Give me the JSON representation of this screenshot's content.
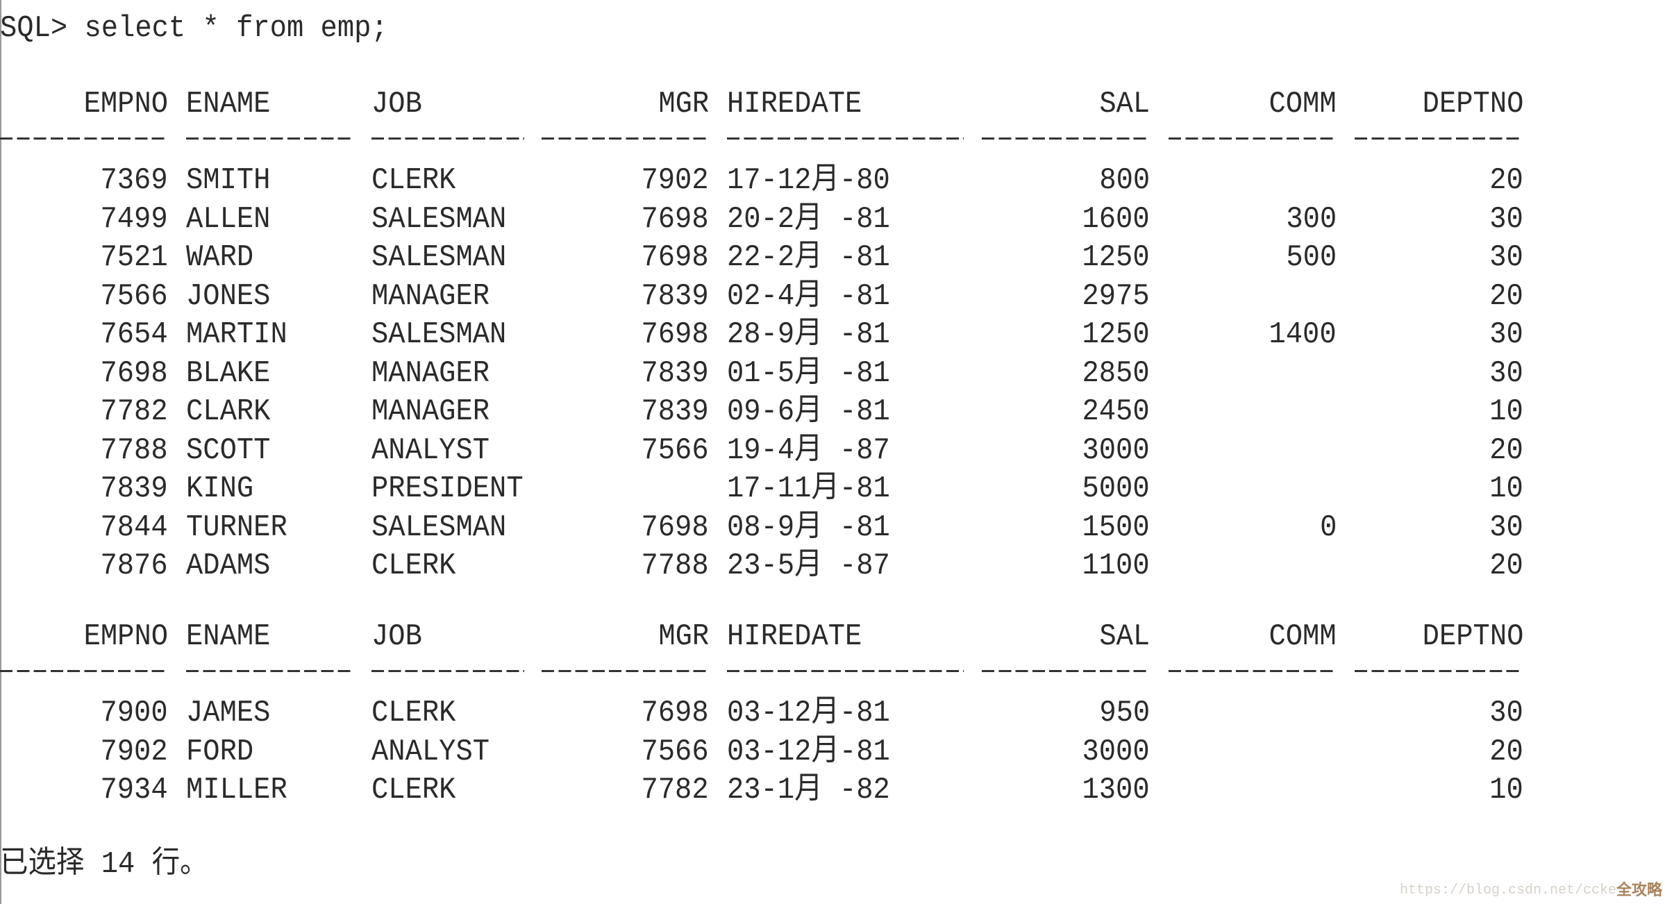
{
  "prompt": "SQL> select * from emp;",
  "columns": [
    "EMPNO",
    "ENAME",
    "JOB",
    "MGR",
    "HIREDATE",
    "SAL",
    "COMM",
    "DEPTNO"
  ],
  "pages": [
    [
      [
        "7369",
        "SMITH",
        "CLERK",
        "7902",
        "17-12月-80",
        "800",
        "",
        "20"
      ],
      [
        "7499",
        "ALLEN",
        "SALESMAN",
        "7698",
        "20-2月 -81",
        "1600",
        "300",
        "30"
      ],
      [
        "7521",
        "WARD",
        "SALESMAN",
        "7698",
        "22-2月 -81",
        "1250",
        "500",
        "30"
      ],
      [
        "7566",
        "JONES",
        "MANAGER",
        "7839",
        "02-4月 -81",
        "2975",
        "",
        "20"
      ],
      [
        "7654",
        "MARTIN",
        "SALESMAN",
        "7698",
        "28-9月 -81",
        "1250",
        "1400",
        "30"
      ],
      [
        "7698",
        "BLAKE",
        "MANAGER",
        "7839",
        "01-5月 -81",
        "2850",
        "",
        "30"
      ],
      [
        "7782",
        "CLARK",
        "MANAGER",
        "7839",
        "09-6月 -81",
        "2450",
        "",
        "10"
      ],
      [
        "7788",
        "SCOTT",
        "ANALYST",
        "7566",
        "19-4月 -87",
        "3000",
        "",
        "20"
      ],
      [
        "7839",
        "KING",
        "PRESIDENT",
        "",
        "17-11月-81",
        "5000",
        "",
        "10"
      ],
      [
        "7844",
        "TURNER",
        "SALESMAN",
        "7698",
        "08-9月 -81",
        "1500",
        "0",
        "30"
      ],
      [
        "7876",
        "ADAMS",
        "CLERK",
        "7788",
        "23-5月 -87",
        "1100",
        "",
        "20"
      ]
    ],
    [
      [
        "7900",
        "JAMES",
        "CLERK",
        "7698",
        "03-12月-81",
        "950",
        "",
        "30"
      ],
      [
        "7902",
        "FORD",
        "ANALYST",
        "7566",
        "03-12月-81",
        "3000",
        "",
        "20"
      ],
      [
        "7934",
        "MILLER",
        "CLERK",
        "7782",
        "23-1月 -82",
        "1300",
        "",
        "10"
      ]
    ]
  ],
  "footer": "已选择 14 行。",
  "watermark": "https://blog.csdn.net/ccke",
  "watermark_logo": "全攻略"
}
